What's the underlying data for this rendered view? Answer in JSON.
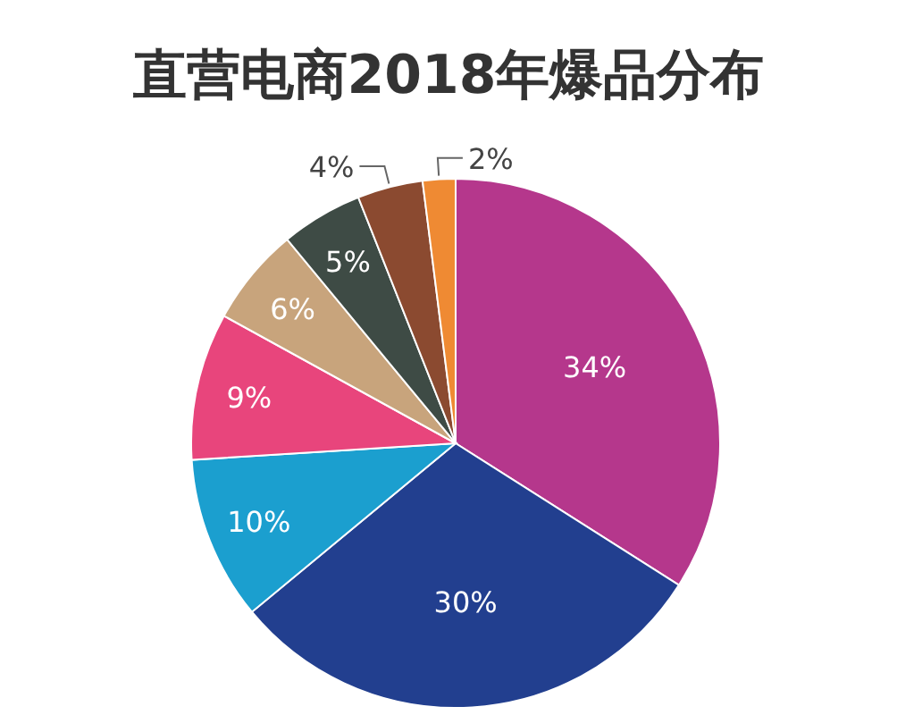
{
  "chart_data": {
    "type": "pie",
    "title": "直营电商2018年爆品分布",
    "categories": [
      null,
      null,
      null,
      null,
      null,
      null,
      null,
      null
    ],
    "values": [
      34,
      30,
      10,
      9,
      6,
      5,
      4,
      2
    ],
    "colors": [
      "#b5378c",
      "#223f8f",
      "#1b9fcf",
      "#e8457c",
      "#c8a47c",
      "#3e4b45",
      "#8b4a30",
      "#ef8a33"
    ],
    "value_labels": [
      "34%",
      "30%",
      "10%",
      "9%",
      "6%",
      "5%",
      "4%",
      "2%"
    ]
  }
}
